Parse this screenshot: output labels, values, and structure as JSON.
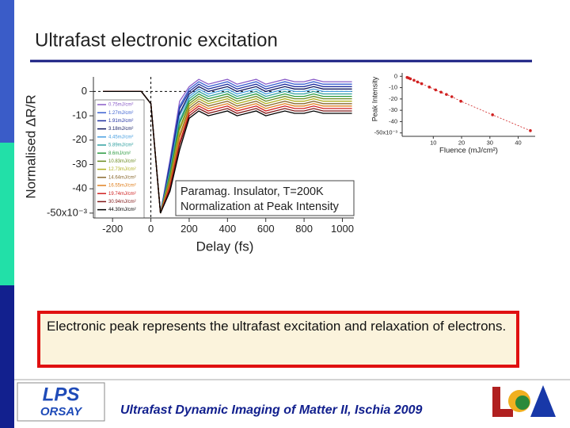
{
  "slide": {
    "title": "Ultrafast electronic excitation",
    "body": "Electronic peak represents the ultrafast excitation and relaxation of electrons.",
    "footer": "Ultrafast Dynamic Imaging of Matter II, Ischia 2009",
    "logo": [
      "LPS",
      "ORSAY"
    ]
  },
  "chart_data": [
    {
      "type": "line",
      "xlabel": "Delay (fs)",
      "ylabel": "Normalised ΔR/R",
      "annotations": [
        "Paramag. Insulator, T=200K",
        "Normalization at Peak Intensity"
      ],
      "legend": "left",
      "x": [
        -250,
        -200,
        -150,
        -100,
        -50,
        0,
        50,
        100,
        150,
        200,
        250,
        300,
        350,
        400,
        450,
        500,
        550,
        600,
        650,
        700,
        750,
        800,
        850,
        900,
        950,
        1000,
        1050
      ],
      "xlim": [
        -300,
        1060
      ],
      "xticks": [
        -200,
        0,
        200,
        400,
        600,
        800,
        1000
      ],
      "ylim": [
        -52,
        6
      ],
      "yticks": [
        0,
        -10,
        -20,
        -30,
        -40,
        {
          "value": -50,
          "label": "-50x10⁻³"
        }
      ],
      "series": [
        {
          "name": "0.75mJ/cm²",
          "color": "#8a5cc8",
          "values": [
            0,
            0,
            0,
            0,
            0,
            -5,
            -50,
            -28,
            -4,
            2,
            5,
            3,
            4,
            5,
            3,
            4,
            5,
            3,
            4,
            5,
            4,
            4,
            5,
            4,
            4,
            4,
            4
          ]
        },
        {
          "name": "1.27mJ/cm²",
          "color": "#3a5fd0",
          "values": [
            0,
            0,
            0,
            0,
            0,
            -5,
            -50,
            -29,
            -6,
            1,
            4,
            2,
            3,
            4,
            2,
            3,
            4,
            2,
            3,
            4,
            3,
            3,
            4,
            3,
            3,
            3,
            3
          ]
        },
        {
          "name": "1.91mJ/cm²",
          "color": "#1e2fa0",
          "values": [
            0,
            0,
            0,
            0,
            0,
            -5,
            -50,
            -30,
            -7,
            0,
            3,
            1,
            2,
            3,
            1,
            2,
            3,
            1,
            2,
            3,
            2,
            2,
            3,
            2,
            2,
            2,
            2
          ]
        },
        {
          "name": "3.18mJ/cm²",
          "color": "#101860",
          "values": [
            0,
            0,
            0,
            0,
            0,
            -5,
            -50,
            -31,
            -9,
            -1,
            2,
            0,
            1,
            2,
            0,
            1,
            2,
            0,
            1,
            2,
            1,
            1,
            2,
            1,
            1,
            1,
            1
          ]
        },
        {
          "name": "4.45mJ/cm²",
          "color": "#4aa0e0",
          "values": [
            0,
            0,
            0,
            0,
            0,
            -5,
            -50,
            -32,
            -10,
            -2,
            1,
            -1,
            0,
            1,
            -1,
            0,
            1,
            -1,
            0,
            1,
            0,
            0,
            1,
            0,
            0,
            0,
            0
          ]
        },
        {
          "name": "5.89mJ/cm²",
          "color": "#30a0a0",
          "values": [
            0,
            0,
            0,
            0,
            0,
            -5,
            -50,
            -33,
            -12,
            -3,
            0,
            -2,
            -1,
            0,
            -2,
            -1,
            0,
            -2,
            -1,
            0,
            -1,
            -1,
            0,
            -1,
            -1,
            -1,
            -1
          ]
        },
        {
          "name": "8.6mJ/cm²",
          "color": "#2a9a40",
          "values": [
            0,
            0,
            0,
            0,
            0,
            -5,
            -50,
            -34,
            -13,
            -4,
            -1,
            -3,
            -2,
            -1,
            -3,
            -2,
            -1,
            -3,
            -2,
            -1,
            -2,
            -2,
            -1,
            -2,
            -2,
            -2,
            -2
          ]
        },
        {
          "name": "10.83mJ/cm²",
          "color": "#6a8a20",
          "values": [
            0,
            0,
            0,
            0,
            0,
            -5,
            -50,
            -35,
            -15,
            -5,
            -2,
            -4,
            -3,
            -2,
            -4,
            -3,
            -2,
            -4,
            -3,
            -2,
            -3,
            -3,
            -2,
            -3,
            -3,
            -3,
            -3
          ]
        },
        {
          "name": "12.73mJ/cm²",
          "color": "#b0b020",
          "values": [
            0,
            0,
            0,
            0,
            0,
            -5,
            -50,
            -36,
            -16,
            -6,
            -3,
            -5,
            -4,
            -3,
            -5,
            -4,
            -3,
            -5,
            -4,
            -3,
            -4,
            -4,
            -3,
            -4,
            -4,
            -4,
            -4
          ]
        },
        {
          "name": "14.64mJ/cm²",
          "color": "#8a6a30",
          "values": [
            0,
            0,
            0,
            0,
            0,
            -5,
            -50,
            -37,
            -18,
            -7,
            -4,
            -6,
            -5,
            -4,
            -6,
            -5,
            -4,
            -6,
            -5,
            -4,
            -5,
            -5,
            -4,
            -5,
            -5,
            -5,
            -5
          ]
        },
        {
          "name": "16.55mJ/cm²",
          "color": "#e08020",
          "values": [
            0,
            0,
            0,
            0,
            0,
            -5,
            -50,
            -38,
            -19,
            -8,
            -5,
            -7,
            -6,
            -5,
            -7,
            -6,
            -5,
            -7,
            -6,
            -5,
            -6,
            -6,
            -5,
            -6,
            -6,
            -6,
            -6
          ]
        },
        {
          "name": "19.74mJ/cm²",
          "color": "#d02020",
          "values": [
            0,
            0,
            0,
            0,
            0,
            -5,
            -50,
            -39,
            -21,
            -9,
            -6,
            -8,
            -7,
            -6,
            -8,
            -7,
            -6,
            -8,
            -7,
            -6,
            -7,
            -7,
            -6,
            -7,
            -7,
            -7,
            -7
          ]
        },
        {
          "name": "30.94mJ/cm²",
          "color": "#801818",
          "values": [
            0,
            0,
            0,
            0,
            0,
            -5,
            -50,
            -40,
            -22,
            -10,
            -7,
            -9,
            -8,
            -7,
            -9,
            -8,
            -7,
            -9,
            -8,
            -7,
            -8,
            -8,
            -7,
            -8,
            -8,
            -8,
            -8
          ]
        },
        {
          "name": "44.30mJ/cm²",
          "color": "#000000",
          "values": [
            0,
            0,
            0,
            0,
            0,
            -5,
            -50,
            -41,
            -24,
            -11,
            -8,
            -10,
            -9,
            -8,
            -10,
            -9,
            -8,
            -10,
            -9,
            -8,
            -9,
            -9,
            -8,
            -9,
            -9,
            -9,
            -9
          ]
        }
      ]
    },
    {
      "type": "scatter",
      "xlabel": "Fluence (mJ/cm²)",
      "ylabel": "Peak Intensity",
      "color": "#d02020",
      "x": [
        0.75,
        1.27,
        1.91,
        3.18,
        4.45,
        5.89,
        8.6,
        10.83,
        12.73,
        14.64,
        16.55,
        19.74,
        30.94,
        44.3
      ],
      "values": [
        -1,
        -1.5,
        -2.2,
        -3.5,
        -5,
        -6.5,
        -9.5,
        -12,
        -14,
        -16,
        -18,
        -22,
        -34,
        -48
      ],
      "xlim": [
        -1,
        46
      ],
      "xticks": [
        10,
        20,
        30,
        40
      ],
      "ylim": [
        -53,
        3
      ],
      "yticks": [
        0,
        -10,
        -20,
        -30,
        -40,
        {
          "value": -50,
          "label": "-50x10⁻³"
        }
      ]
    }
  ]
}
